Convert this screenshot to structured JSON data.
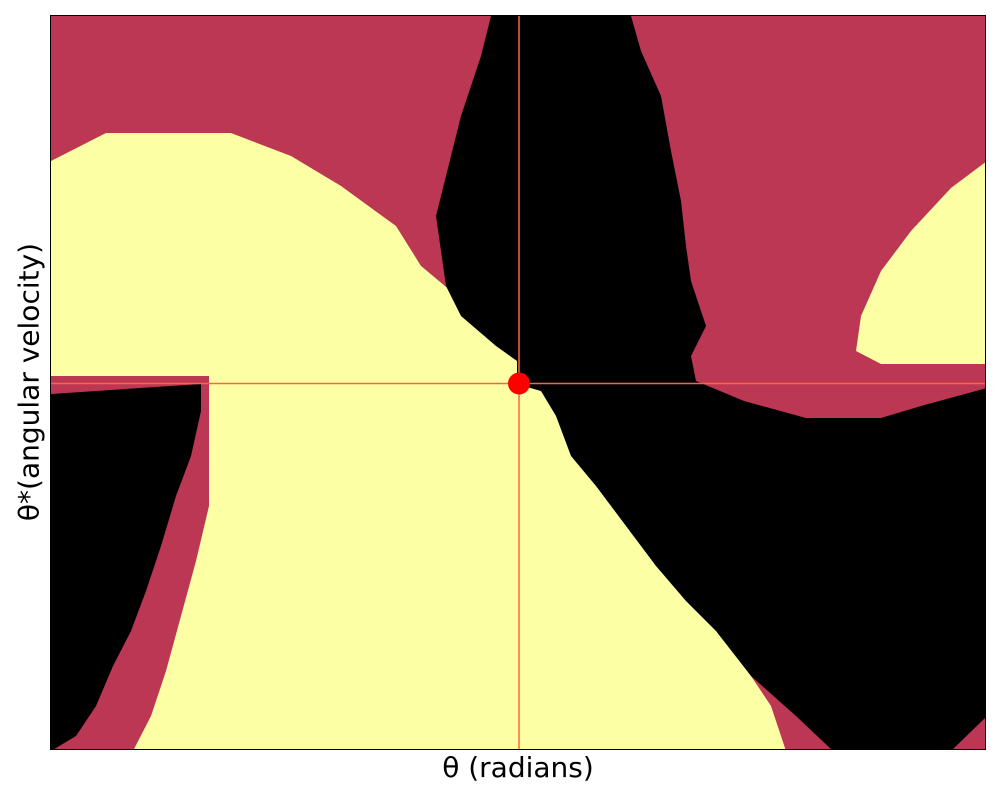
{
  "chart_data": {
    "type": "heatmap",
    "title": "",
    "xlabel": "θ (radians)",
    "ylabel": "θ*(angular velocity)",
    "colormap": "inferno",
    "colors": {
      "magenta_region": "#bc3754",
      "yellow_region": "#fcffa4",
      "black_region": "#000000",
      "crosshair": "#ff6347",
      "marker": "#ff0000"
    },
    "marker": {
      "x_fraction": 0.5,
      "y_fraction": 0.5
    },
    "grid": false,
    "ticks_visible": false
  }
}
